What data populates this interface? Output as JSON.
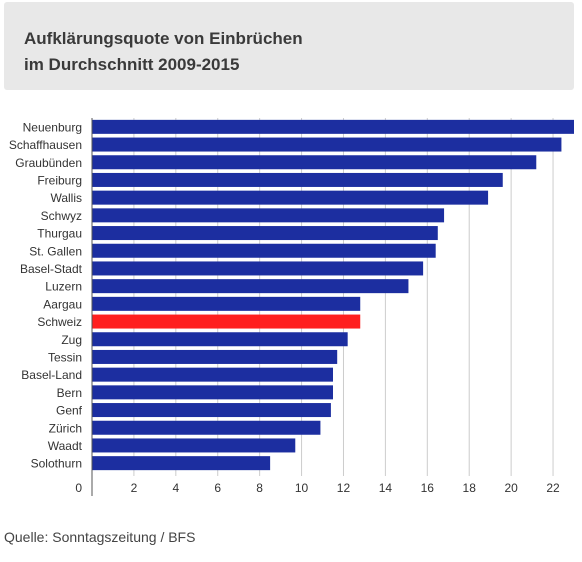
{
  "title_lines": [
    "Aufklärungsquote von Einbrüchen",
    "im Durchschnitt 2009-2015"
  ],
  "source": "Quelle: Sonntagszeitung / BFS",
  "colors": {
    "bar": "#1c2ea0",
    "highlight": "#ff1f1f",
    "grid": "#cccccc",
    "title_bg": "#e8e8e8"
  },
  "chart_data": {
    "type": "bar",
    "orientation": "horizontal",
    "title": "Aufklärungsquote von Einbrüchen im Durchschnitt 2009-2015",
    "xlabel": "",
    "ylabel": "",
    "xlim": [
      0,
      23
    ],
    "ticks": [
      0,
      2,
      4,
      6,
      8,
      10,
      12,
      14,
      16,
      18,
      20,
      22
    ],
    "grid": true,
    "highlight": "Schweiz",
    "categories": [
      "Neuenburg",
      "Schaffhausen",
      "Graubünden",
      "Freiburg",
      "Wallis",
      "Schwyz",
      "Thurgau",
      "St. Gallen",
      "Basel-Stadt",
      "Luzern",
      "Aargau",
      "Schweiz",
      "Zug",
      "Tessin",
      "Basel-Land",
      "Bern",
      "Genf",
      "Zürich",
      "Waadt",
      "Solothurn"
    ],
    "values": [
      23.0,
      22.4,
      21.2,
      19.6,
      18.9,
      16.8,
      16.5,
      16.4,
      15.8,
      15.1,
      12.8,
      12.8,
      12.2,
      11.7,
      11.5,
      11.5,
      11.4,
      10.9,
      9.7,
      8.5
    ]
  }
}
